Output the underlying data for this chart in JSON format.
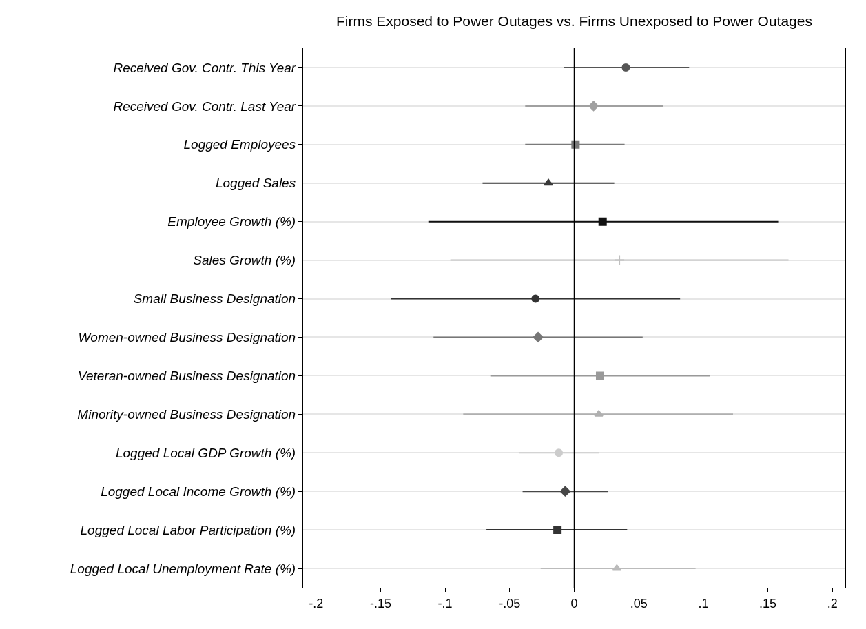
{
  "chart_data": {
    "type": "scatter",
    "orientation": "horizontal",
    "title": "Firms Exposed to Power Outages vs. Firms Unexposed to Power Outages",
    "categories": [
      "Received Gov. Contr. This Year",
      "Received Gov. Contr. Last Year",
      "Logged Employees",
      "Logged Sales",
      "Employee Growth (%)",
      "Sales Growth (%)",
      "Small Business Designation",
      "Women-owned Business Designation",
      "Veteran-owned Business Designation",
      "Minority-owned Business Designation",
      "Logged Local GDP Growth (%)",
      "Logged Local Income Growth (%)",
      "Logged Local Labor Participation (%)",
      "Logged Local Unemployment Rate (%)"
    ],
    "series": [
      {
        "color": "#555555",
        "marker": "circle",
        "values": [
          0.04,
          null,
          null,
          null,
          null,
          null,
          null,
          null,
          null,
          null,
          null,
          null,
          null,
          null
        ],
        "errors": [
          [
            -0.008,
            0.089
          ],
          null,
          null,
          null,
          null,
          null,
          null,
          null,
          null,
          null,
          null,
          null,
          null,
          null
        ]
      },
      {
        "color": "#a0a0a0",
        "marker": "diamond",
        "values": [
          null,
          0.015,
          null,
          null,
          null,
          null,
          null,
          null,
          null,
          null,
          null,
          null,
          null,
          null
        ],
        "errors": [
          null,
          [
            -0.038,
            0.069
          ],
          null,
          null,
          null,
          null,
          null,
          null,
          null,
          null,
          null,
          null,
          null,
          null
        ]
      },
      {
        "color": "#7a7a7a",
        "marker": "square",
        "values": [
          null,
          null,
          0.001,
          null,
          null,
          null,
          null,
          null,
          null,
          null,
          null,
          null,
          null,
          null
        ],
        "errors": [
          null,
          null,
          [
            -0.038,
            0.039
          ],
          null,
          null,
          null,
          null,
          null,
          null,
          null,
          null,
          null,
          null,
          null
        ]
      },
      {
        "color": "#3a3a3a",
        "marker": "triangle",
        "values": [
          null,
          null,
          null,
          -0.02,
          null,
          null,
          null,
          null,
          null,
          null,
          null,
          null,
          null,
          null
        ],
        "errors": [
          null,
          null,
          null,
          [
            -0.071,
            0.031
          ],
          null,
          null,
          null,
          null,
          null,
          null,
          null,
          null,
          null,
          null
        ]
      },
      {
        "color": "#111111",
        "marker": "square",
        "values": [
          null,
          null,
          null,
          null,
          0.022,
          null,
          null,
          null,
          null,
          null,
          null,
          null,
          null,
          null
        ],
        "errors": [
          null,
          null,
          null,
          null,
          [
            -0.113,
            0.158
          ],
          null,
          null,
          null,
          null,
          null,
          null,
          null,
          null,
          null
        ]
      },
      {
        "color": "#c0c0c0",
        "marker": "cross",
        "values": [
          null,
          null,
          null,
          null,
          null,
          0.035,
          null,
          null,
          null,
          null,
          null,
          null,
          null,
          null
        ],
        "errors": [
          null,
          null,
          null,
          null,
          null,
          [
            -0.096,
            0.166
          ],
          null,
          null,
          null,
          null,
          null,
          null,
          null,
          null
        ]
      },
      {
        "color": "#333333",
        "marker": "circle",
        "values": [
          null,
          null,
          null,
          null,
          null,
          null,
          -0.03,
          null,
          null,
          null,
          null,
          null,
          null,
          null
        ],
        "errors": [
          null,
          null,
          null,
          null,
          null,
          null,
          [
            -0.142,
            0.082
          ],
          null,
          null,
          null,
          null,
          null,
          null,
          null
        ]
      },
      {
        "color": "#777777",
        "marker": "diamond",
        "values": [
          null,
          null,
          null,
          null,
          null,
          null,
          null,
          -0.028,
          null,
          null,
          null,
          null,
          null,
          null
        ],
        "errors": [
          null,
          null,
          null,
          null,
          null,
          null,
          null,
          [
            -0.109,
            0.053
          ],
          null,
          null,
          null,
          null,
          null,
          null
        ]
      },
      {
        "color": "#999999",
        "marker": "square",
        "values": [
          null,
          null,
          null,
          null,
          null,
          null,
          null,
          null,
          0.02,
          null,
          null,
          null,
          null,
          null
        ],
        "errors": [
          null,
          null,
          null,
          null,
          null,
          null,
          null,
          null,
          [
            -0.065,
            0.105
          ],
          null,
          null,
          null,
          null,
          null
        ]
      },
      {
        "color": "#b0b0b0",
        "marker": "triangle",
        "values": [
          null,
          null,
          null,
          null,
          null,
          null,
          null,
          null,
          null,
          0.019,
          null,
          null,
          null,
          null
        ],
        "errors": [
          null,
          null,
          null,
          null,
          null,
          null,
          null,
          null,
          null,
          [
            -0.086,
            0.123
          ],
          null,
          null,
          null,
          null
        ]
      },
      {
        "color": "#cccccc",
        "marker": "circle",
        "values": [
          null,
          null,
          null,
          null,
          null,
          null,
          null,
          null,
          null,
          null,
          -0.012,
          null,
          null,
          null
        ],
        "errors": [
          null,
          null,
          null,
          null,
          null,
          null,
          null,
          null,
          null,
          null,
          [
            -0.043,
            0.019
          ],
          null,
          null,
          null
        ]
      },
      {
        "color": "#474747",
        "marker": "diamond",
        "values": [
          null,
          null,
          null,
          null,
          null,
          null,
          null,
          null,
          null,
          null,
          null,
          -0.007,
          null,
          null
        ],
        "errors": [
          null,
          null,
          null,
          null,
          null,
          null,
          null,
          null,
          null,
          null,
          null,
          [
            -0.04,
            0.026
          ],
          null,
          null
        ]
      },
      {
        "color": "#333333",
        "marker": "square",
        "values": [
          null,
          null,
          null,
          null,
          null,
          null,
          null,
          null,
          null,
          null,
          null,
          null,
          -0.013,
          null
        ],
        "errors": [
          null,
          null,
          null,
          null,
          null,
          null,
          null,
          null,
          null,
          null,
          null,
          null,
          [
            -0.068,
            0.041
          ],
          null
        ]
      },
      {
        "color": "#bbbbbb",
        "marker": "triangle",
        "values": [
          null,
          null,
          null,
          null,
          null,
          null,
          null,
          null,
          null,
          null,
          null,
          null,
          null,
          0.033
        ],
        "errors": [
          null,
          null,
          null,
          null,
          null,
          null,
          null,
          null,
          null,
          null,
          null,
          null,
          null,
          [
            -0.026,
            0.094
          ]
        ]
      }
    ],
    "xlim": [
      -0.21,
      0.21
    ],
    "xticks": [
      {
        "value": -0.2,
        "label": "-.2"
      },
      {
        "value": -0.15,
        "label": "-.15"
      },
      {
        "value": -0.1,
        "label": "-.1"
      },
      {
        "value": -0.05,
        "label": "-.05"
      },
      0,
      {
        "value": 0.05,
        "label": ".05"
      },
      {
        "value": 0.1,
        "label": ".1"
      },
      {
        "value": 0.15,
        "label": ".15"
      },
      {
        "value": 0.2,
        "label": ".2"
      }
    ],
    "ref_lines": [
      {
        "axis": "x",
        "value": 0,
        "color": "#000000"
      }
    ],
    "grid": "y"
  }
}
